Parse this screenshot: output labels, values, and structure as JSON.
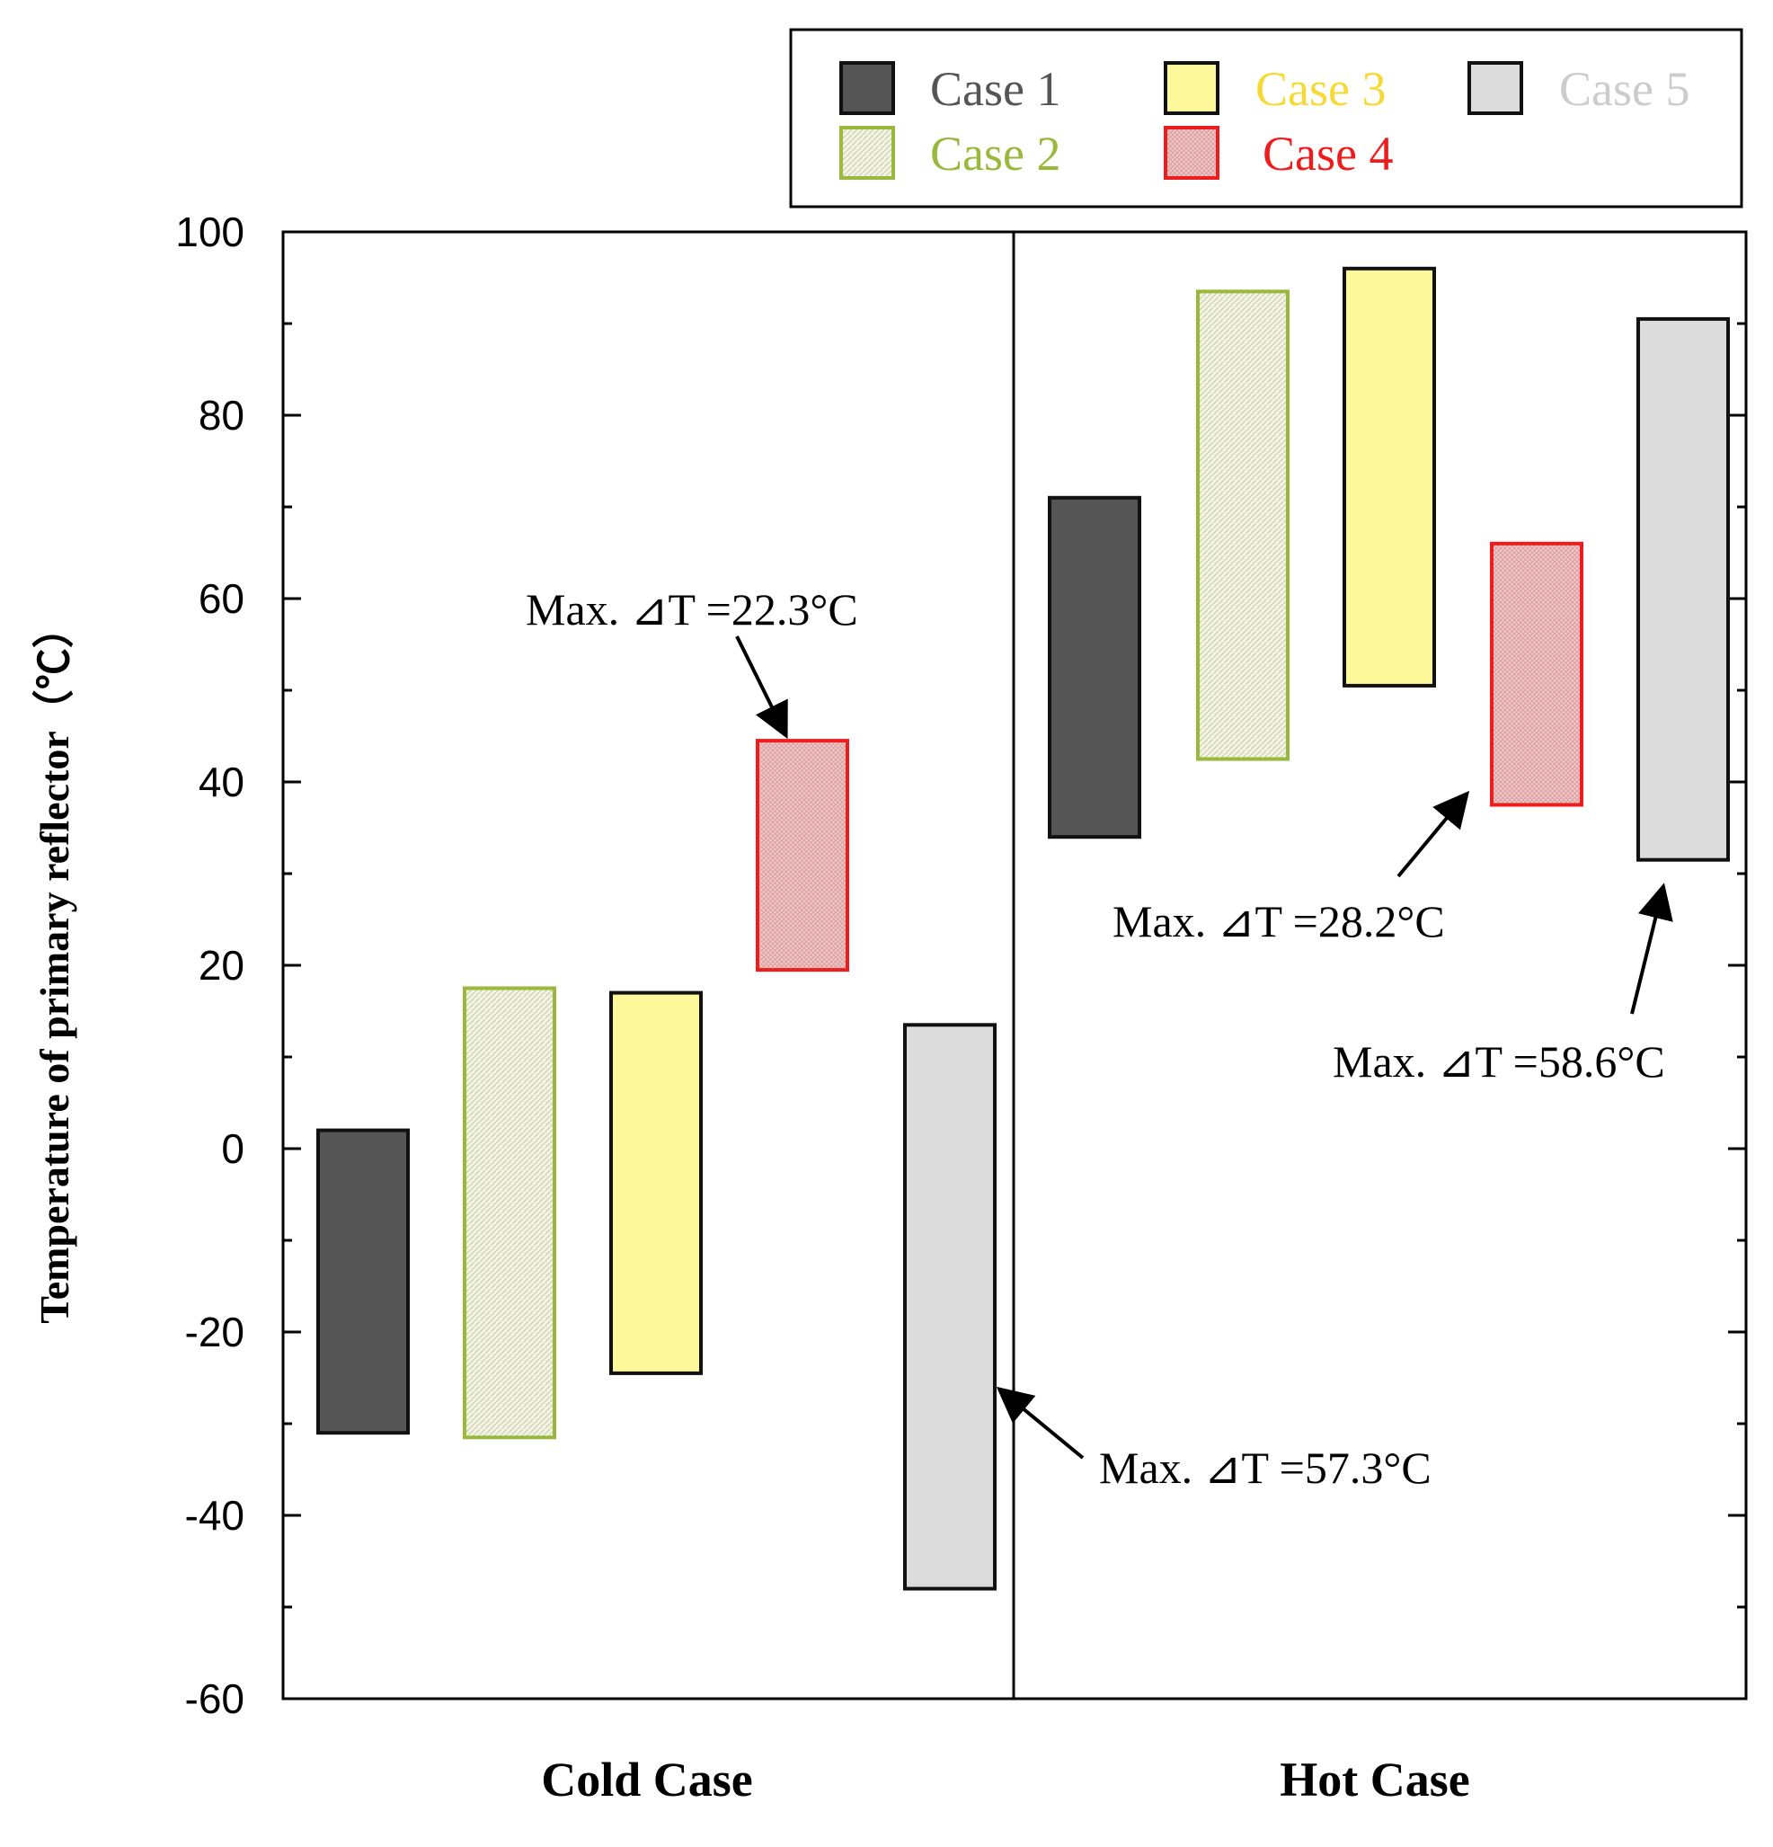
{
  "chart_data": {
    "type": "floating-bar",
    "ylabel": "Temperature of primary reflector（℃）",
    "ylim": [
      -60,
      100
    ],
    "yticks": [
      -60,
      -40,
      -20,
      0,
      20,
      40,
      60,
      80,
      100
    ],
    "groups": [
      "Cold Case",
      "Hot Case"
    ],
    "series": [
      {
        "name": "Case 1",
        "fill": "#555555",
        "stroke": "#111111",
        "hatch": false,
        "label_color": "#555555",
        "ranges": [
          [
            -31,
            2
          ],
          [
            34,
            71
          ]
        ]
      },
      {
        "name": "Case 2",
        "fill": "#f3f3e6",
        "stroke": "#9ab83c",
        "hatch": true,
        "label_color": "#9ab83c",
        "ranges": [
          [
            -31.5,
            17.5
          ],
          [
            42.5,
            93.5
          ]
        ]
      },
      {
        "name": "Case 3",
        "fill": "#fdf89a",
        "stroke": "#111111",
        "hatch": false,
        "label_color": "#f6d934",
        "ranges": [
          [
            -24.5,
            17
          ],
          [
            50.5,
            96
          ]
        ]
      },
      {
        "name": "Case 4",
        "fill": "#efc8c8",
        "stroke": "#ee1c1c",
        "hatch": true,
        "label_color": "#ee1c1c",
        "ranges": [
          [
            19.5,
            44.5
          ],
          [
            37.5,
            66
          ]
        ]
      },
      {
        "name": "Case 5",
        "fill": "#dcdcdc",
        "stroke": "#111111",
        "hatch": false,
        "label_color": "#cccccc",
        "ranges": [
          [
            -48,
            13.5
          ],
          [
            31.5,
            90.5
          ]
        ]
      }
    ],
    "annotations": [
      {
        "text": "Max. ⊿T =22.3°C",
        "group": "Cold Case",
        "series": "Case 4"
      },
      {
        "text": "Max. ⊿T =57.3°C",
        "group": "Cold Case",
        "series": "Case 5"
      },
      {
        "text": "Max. ⊿T =28.2°C",
        "group": "Hot Case",
        "series": "Case 4"
      },
      {
        "text": "Max. ⊿T =58.6°C",
        "group": "Hot Case",
        "series": "Case 5"
      }
    ]
  }
}
